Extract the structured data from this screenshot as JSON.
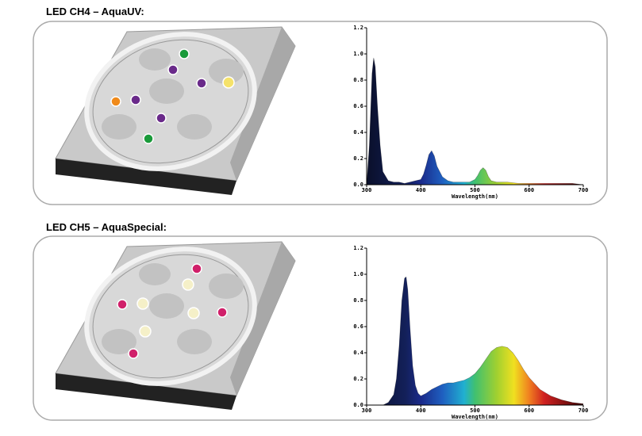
{
  "chart_data": [
    {
      "type": "area",
      "title": "LED CH4 – AquaUV:",
      "xlabel": "Wavelength(nm)",
      "x": [
        300,
        305,
        310,
        313,
        316,
        320,
        325,
        330,
        340,
        350,
        360,
        370,
        380,
        390,
        400,
        405,
        410,
        415,
        420,
        425,
        430,
        440,
        450,
        460,
        470,
        480,
        490,
        500,
        505,
        510,
        515,
        520,
        525,
        530,
        540,
        560,
        580,
        600,
        620,
        640,
        660,
        680,
        700
      ],
      "values": [
        0,
        0.3,
        0.85,
        0.97,
        0.9,
        0.6,
        0.3,
        0.1,
        0.03,
        0.02,
        0.02,
        0.01,
        0.02,
        0.03,
        0.04,
        0.08,
        0.15,
        0.23,
        0.26,
        0.22,
        0.14,
        0.06,
        0.03,
        0.02,
        0.02,
        0.02,
        0.02,
        0.04,
        0.07,
        0.11,
        0.13,
        0.11,
        0.06,
        0.03,
        0.02,
        0.02,
        0.01,
        0.01,
        0.01,
        0.01,
        0.01,
        0.01,
        0
      ],
      "xlim": [
        300,
        700
      ],
      "xticks": [
        300,
        400,
        500,
        600,
        700
      ],
      "ylim": [
        0,
        1.2
      ],
      "yticks": [
        {
          "value": 0,
          "label": "0.0"
        },
        {
          "value": 0.2,
          "label": "0.2"
        },
        {
          "value": 0.4,
          "label": "0.4"
        },
        {
          "value": 0.6,
          "label": "0.6"
        },
        {
          "value": 0.8,
          "label": "0.8"
        },
        {
          "value": 1.0,
          "label": "1.0"
        },
        {
          "value": 1.2,
          "label": "1.2"
        }
      ]
    },
    {
      "type": "area",
      "title": "LED CH5 – AquaSpecial:",
      "xlabel": "Wavelength(nm)",
      "x": [
        330,
        340,
        350,
        355,
        360,
        365,
        370,
        373,
        376,
        380,
        385,
        390,
        395,
        400,
        410,
        420,
        430,
        440,
        450,
        460,
        470,
        480,
        490,
        500,
        510,
        520,
        530,
        540,
        550,
        560,
        570,
        580,
        590,
        600,
        620,
        640,
        660,
        680,
        700
      ],
      "values": [
        0,
        0.02,
        0.08,
        0.2,
        0.45,
        0.8,
        0.97,
        0.98,
        0.88,
        0.6,
        0.3,
        0.15,
        0.09,
        0.07,
        0.09,
        0.12,
        0.14,
        0.16,
        0.17,
        0.17,
        0.18,
        0.19,
        0.21,
        0.24,
        0.29,
        0.35,
        0.41,
        0.44,
        0.45,
        0.44,
        0.4,
        0.34,
        0.27,
        0.21,
        0.12,
        0.07,
        0.04,
        0.02,
        0.01
      ],
      "xlim": [
        300,
        700
      ],
      "xticks": [
        300,
        400,
        500,
        600,
        700
      ],
      "ylim": [
        0,
        1.2
      ],
      "yticks": [
        {
          "value": 0,
          "label": "0.0"
        },
        {
          "value": 0.2,
          "label": "0.2"
        },
        {
          "value": 0.4,
          "label": "0.4"
        },
        {
          "value": 0.6,
          "label": "0.6"
        },
        {
          "value": 0.8,
          "label": "0.8"
        },
        {
          "value": 1.0,
          "label": "1.0"
        },
        {
          "value": 1.2,
          "label": "1.2"
        }
      ]
    }
  ]
}
